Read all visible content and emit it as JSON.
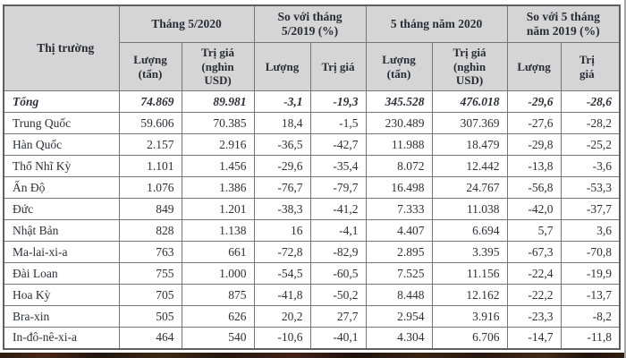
{
  "colors": {
    "header_bg": "#d5d5d5",
    "border": "#767676",
    "text": "#2e2e38",
    "bottom_strip": "#2a1a12"
  },
  "chart_data": {
    "type": "table",
    "header": {
      "market": "Thị trường",
      "groups": [
        "Tháng 5/2020",
        "So với tháng\n5/2019 (%)",
        "5 tháng năm 2020",
        "So với 5 tháng\nnăm 2019 (%)"
      ],
      "subs": [
        "Lượng\n(tấn)",
        "Trị giá\n(nghìn\nUSD)",
        "Lượng",
        "Trị giá",
        "Lượng\n(tấn)",
        "Trị giá\n(nghìn\nUSD)",
        "Lượng",
        "Trị\ngiá"
      ]
    },
    "rows": [
      {
        "market": "Tổng",
        "total": true,
        "values": [
          "74.869",
          "89.981",
          "-3,1",
          "-19,3",
          "345.528",
          "476.018",
          "-29,6",
          "-28,6"
        ]
      },
      {
        "market": "Trung Quốc",
        "total": false,
        "values": [
          "59.606",
          "70.385",
          "18,4",
          "-1,5",
          "230.489",
          "307.369",
          "-27,6",
          "-28,2"
        ]
      },
      {
        "market": "Hàn Quốc",
        "total": false,
        "values": [
          "2.157",
          "2.916",
          "-36,5",
          "-42,7",
          "11.988",
          "18.479",
          "-29,8",
          "-25,2"
        ]
      },
      {
        "market": "Thổ Nhĩ Kỳ",
        "total": false,
        "values": [
          "1.101",
          "1.456",
          "-29,6",
          "-35,4",
          "8.072",
          "12.442",
          "-13,8",
          "-3,6"
        ]
      },
      {
        "market": "Ấn Độ",
        "total": false,
        "values": [
          "1.076",
          "1.386",
          "-76,7",
          "-79,7",
          "16.498",
          "24.767",
          "-56,8",
          "-53,3"
        ]
      },
      {
        "market": "Đức",
        "total": false,
        "values": [
          "849",
          "1.201",
          "-38,3",
          "-41,2",
          "7.333",
          "11.038",
          "-42,0",
          "-37,7"
        ]
      },
      {
        "market": "Nhật Bản",
        "total": false,
        "values": [
          "828",
          "1.138",
          "16",
          "-4,1",
          "4.407",
          "6.694",
          "5,7",
          "3,6"
        ]
      },
      {
        "market": "Ma-lai-xi-a",
        "total": false,
        "values": [
          "763",
          "661",
          "-72,8",
          "-82,9",
          "2.895",
          "3.395",
          "-67,3",
          "-70,8"
        ]
      },
      {
        "market": "Đài Loan",
        "total": false,
        "values": [
          "755",
          "1.000",
          "-54,5",
          "-60,5",
          "7.525",
          "11.156",
          "-22,4",
          "-19,9"
        ]
      },
      {
        "market": "Hoa Kỳ",
        "total": false,
        "values": [
          "705",
          "875",
          "-41,8",
          "-50,2",
          "8.448",
          "12.162",
          "-22,2",
          "-13,7"
        ]
      },
      {
        "market": "Bra-xin",
        "total": false,
        "values": [
          "505",
          "626",
          "20,2",
          "27,7",
          "2.954",
          "3.916",
          "-23,3",
          "-8,2"
        ]
      },
      {
        "market": "In-đô-nê-xi-a",
        "total": false,
        "values": [
          "464",
          "540",
          "-10,6",
          "-40,1",
          "4.304",
          "6.706",
          "-14,7",
          "-11,8"
        ]
      }
    ]
  }
}
